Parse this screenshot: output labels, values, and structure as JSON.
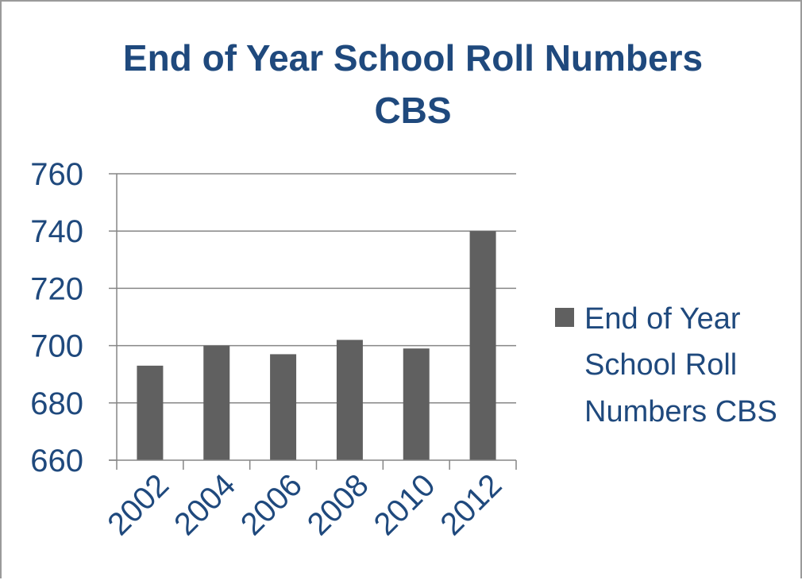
{
  "chart_data": {
    "type": "bar",
    "title": "End of Year School Roll Numbers CBS",
    "title_lines": [
      "End of Year School Roll Numbers",
      "CBS"
    ],
    "categories": [
      "2002",
      "2004",
      "2006",
      "2008",
      "2010",
      "2012"
    ],
    "series": [
      {
        "name": "End of Year School Roll Numbers CBS",
        "values": [
          693,
          700,
          697,
          702,
          699,
          740
        ]
      }
    ],
    "legend_lines": [
      "End of Year",
      "School Roll",
      "Numbers CBS"
    ],
    "y_ticks": [
      "660",
      "680",
      "700",
      "720",
      "740",
      "760"
    ],
    "ylim": [
      660,
      760
    ],
    "grid": true,
    "legend_position": "right",
    "colors": {
      "bar": "#606060",
      "text": "#1f497d",
      "gridline": "#868686",
      "axis": "#868686"
    }
  }
}
